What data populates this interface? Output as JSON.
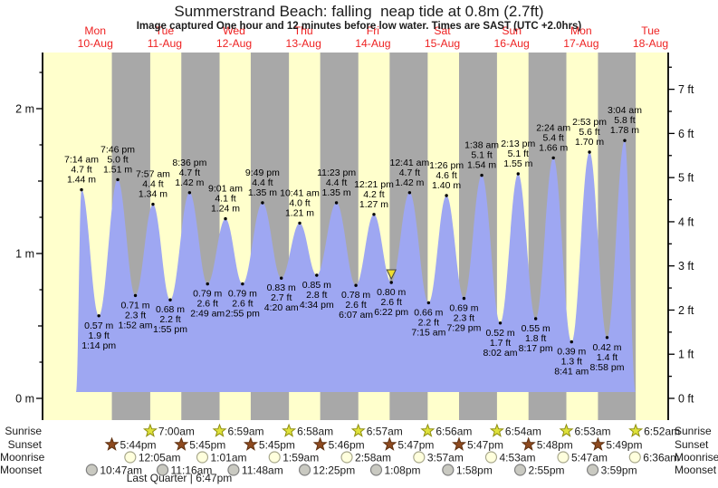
{
  "chart_data": {
    "type": "area",
    "title": "Summerstrand Beach: falling  neap tide at 0.8m (2.7ft)",
    "subtitle": "Image captured One hour and 12 minutes before low water. Times are SAST (UTC +2.0hrs)",
    "days": [
      {
        "dow": "Mon",
        "date": "10-Aug"
      },
      {
        "dow": "Tue",
        "date": "11-Aug"
      },
      {
        "dow": "Wed",
        "date": "12-Aug"
      },
      {
        "dow": "Thu",
        "date": "13-Aug"
      },
      {
        "dow": "Fri",
        "date": "14-Aug"
      },
      {
        "dow": "Sat",
        "date": "15-Aug"
      },
      {
        "dow": "Sun",
        "date": "16-Aug"
      },
      {
        "dow": "Mon",
        "date": "17-Aug"
      },
      {
        "dow": "Tue",
        "date": "18-Aug"
      }
    ],
    "y_axis_left": {
      "unit": "m",
      "tick_labels": [
        "0 m",
        "1 m",
        "2 m"
      ]
    },
    "y_axis_right": {
      "unit": "ft",
      "tick_labels": [
        "0 ft",
        "1 ft",
        "2 ft",
        "3 ft",
        "4 ft",
        "5 ft",
        "6 ft",
        "7 ft"
      ]
    },
    "tide_events": [
      {
        "day": 0,
        "time": "7:14 am",
        "height_m": 1.44,
        "height_ft": 4.7,
        "type": "high"
      },
      {
        "day": 0,
        "time": "1:14 pm",
        "height_m": 0.57,
        "height_ft": 1.9,
        "type": "low"
      },
      {
        "day": 0,
        "time": "7:46 pm",
        "height_m": 1.51,
        "height_ft": 5.0,
        "type": "high"
      },
      {
        "day": 1,
        "time": "1:52 am",
        "height_m": 0.71,
        "height_ft": 2.3,
        "type": "low"
      },
      {
        "day": 1,
        "time": "7:57 am",
        "height_m": 1.34,
        "height_ft": 4.4,
        "type": "high"
      },
      {
        "day": 1,
        "time": "1:55 pm",
        "height_m": 0.68,
        "height_ft": 2.2,
        "type": "low"
      },
      {
        "day": 1,
        "time": "8:36 pm",
        "height_m": 1.42,
        "height_ft": 4.7,
        "type": "high"
      },
      {
        "day": 2,
        "time": "2:49 am",
        "height_m": 0.79,
        "height_ft": 2.6,
        "type": "low"
      },
      {
        "day": 2,
        "time": "9:01 am",
        "height_m": 1.24,
        "height_ft": 4.1,
        "type": "high"
      },
      {
        "day": 2,
        "time": "2:55 pm",
        "height_m": 0.79,
        "height_ft": 2.6,
        "type": "low"
      },
      {
        "day": 2,
        "time": "9:49 pm",
        "height_m": 1.35,
        "height_ft": 4.4,
        "type": "high"
      },
      {
        "day": 3,
        "time": "4:20 am",
        "height_m": 0.83,
        "height_ft": 2.7,
        "type": "low"
      },
      {
        "day": 3,
        "time": "10:41 am",
        "height_m": 1.21,
        "height_ft": 4.0,
        "type": "high"
      },
      {
        "day": 3,
        "time": "4:34 pm",
        "height_m": 0.85,
        "height_ft": 2.8,
        "type": "low"
      },
      {
        "day": 3,
        "time": "11:23 pm",
        "height_m": 1.35,
        "height_ft": 4.4,
        "type": "high"
      },
      {
        "day": 4,
        "time": "6:07 am",
        "height_m": 0.78,
        "height_ft": 2.6,
        "type": "low"
      },
      {
        "day": 4,
        "time": "12:21 pm",
        "height_m": 1.27,
        "height_ft": 4.2,
        "type": "high"
      },
      {
        "day": 4,
        "time": "6:22 pm",
        "height_m": 0.8,
        "height_ft": 2.6,
        "type": "low"
      },
      {
        "day": 5,
        "time": "12:41 am",
        "height_m": 1.42,
        "height_ft": 4.7,
        "type": "high"
      },
      {
        "day": 5,
        "time": "7:15 am",
        "height_m": 0.66,
        "height_ft": 2.2,
        "type": "low"
      },
      {
        "day": 5,
        "time": "1:26 pm",
        "height_m": 1.4,
        "height_ft": 4.6,
        "type": "high"
      },
      {
        "day": 5,
        "time": "7:29 pm",
        "height_m": 0.69,
        "height_ft": 2.3,
        "type": "low"
      },
      {
        "day": 6,
        "time": "1:38 am",
        "height_m": 1.54,
        "height_ft": 5.1,
        "type": "high"
      },
      {
        "day": 6,
        "time": "8:02 am",
        "height_m": 0.52,
        "height_ft": 1.7,
        "type": "low"
      },
      {
        "day": 6,
        "time": "2:13 pm",
        "height_m": 1.55,
        "height_ft": 5.1,
        "type": "high"
      },
      {
        "day": 6,
        "time": "8:17 pm",
        "height_m": 0.55,
        "height_ft": 1.8,
        "type": "low"
      },
      {
        "day": 7,
        "time": "2:24 am",
        "height_m": 1.66,
        "height_ft": 5.4,
        "type": "high"
      },
      {
        "day": 7,
        "time": "8:41 am",
        "height_m": 0.39,
        "height_ft": 1.3,
        "type": "low"
      },
      {
        "day": 7,
        "time": "2:53 pm",
        "height_m": 1.7,
        "height_ft": 5.6,
        "type": "high"
      },
      {
        "day": 7,
        "time": "8:58 pm",
        "height_m": 0.42,
        "height_ft": 1.4,
        "type": "low"
      },
      {
        "day": 8,
        "time": "3:04 am",
        "height_m": 1.78,
        "height_ft": 5.8,
        "type": "high"
      }
    ],
    "current_marker": {
      "event_index": 17,
      "height_m": 0.8
    }
  },
  "astro": {
    "rows": [
      {
        "key": "sunrise",
        "label": "Sunrise",
        "icon": "sunrise-star",
        "start_day": 1,
        "times": [
          "7:00am",
          "6:59am",
          "6:58am",
          "6:57am",
          "6:56am",
          "6:54am",
          "6:53am",
          "6:52am"
        ]
      },
      {
        "key": "sunset",
        "label": "Sunset",
        "icon": "sunset-star",
        "start_day": 0,
        "times": [
          "5:44pm",
          "5:45pm",
          "5:45pm",
          "5:46pm",
          "5:47pm",
          "5:47pm",
          "5:48pm",
          "5:49pm"
        ]
      },
      {
        "key": "moonrise",
        "label": "Moonrise",
        "icon": "moonrise-circle",
        "start_day": 1,
        "times": [
          "12:05am",
          "1:01am",
          "1:59am",
          "2:58am",
          "3:57am",
          "4:53am",
          "5:47am",
          "6:36am"
        ]
      },
      {
        "key": "moonset",
        "label": "Moonset",
        "icon": "moonset-circle",
        "start_day": 0,
        "times": [
          "10:47am",
          "11:16am",
          "11:48am",
          "12:25pm",
          "1:08pm",
          "1:58pm",
          "2:55pm",
          "3:59pm"
        ]
      }
    ],
    "moon_phase": "Last Quarter | 6:47pm"
  },
  "colors": {
    "day_band": "#ffffcc",
    "night_band": "#a8a8a8",
    "tide_fill": "#9ea7f2",
    "date_text": "#ee2222",
    "axis_text": "#111111",
    "sunrise_star_fill": "#dfe23b",
    "sunrise_star_stroke": "#8f8f10",
    "sunset_star_fill": "#8e4a1f",
    "sunset_star_stroke": "#5e3010",
    "moonrise_fill": "#ffffdd",
    "moonrise_stroke": "#a6a68a",
    "moonset_fill": "#c9c9c1",
    "moonset_stroke": "#808080",
    "marker_fill": "#eedd30",
    "marker_stroke": "#444444"
  }
}
